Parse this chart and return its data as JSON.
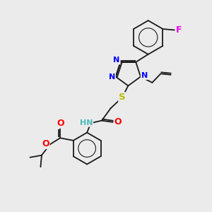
{
  "background_color": "#ebebeb",
  "bond_color": "#1a1a1a",
  "atom_colors": {
    "N": "#0000ff",
    "S": "#bbbb00",
    "O": "#ff0000",
    "F": "#ee00ee",
    "H": "#4db8b8",
    "C": "#1a1a1a"
  },
  "font_size": 8.0,
  "fig_width": 3.0,
  "fig_height": 3.0,
  "dpi": 100
}
